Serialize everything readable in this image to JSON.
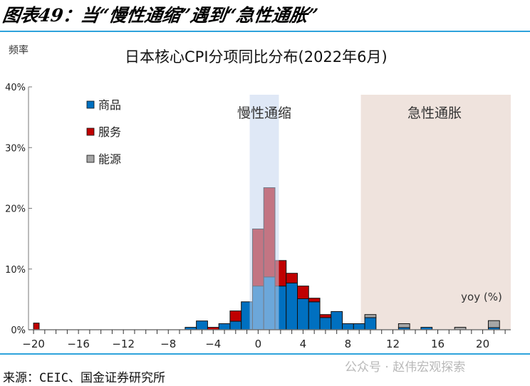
{
  "figure_title": "图表49：当“慢性通缩”遇到“急性通胀”",
  "source": "来源：CEIC、国金证券研究所",
  "watermark": "公众号 · 赵伟宏观探索",
  "colors": {
    "rule": "#2ea3dc",
    "goods": "#0070c0",
    "services": "#c00000",
    "energy": "#a6a6a6",
    "slow_region": "#c5d6ee",
    "acute_region": "#efe3dd"
  },
  "chart_data": {
    "type": "bar",
    "stacked": true,
    "title": "日本核心CPI分项同比分布(2022年6月)",
    "ylabel": "频率",
    "xlabel": "yoy (%)",
    "xlim": [
      -20.45,
      22.5
    ],
    "ylim": [
      0,
      40
    ],
    "xticks": [
      -20,
      -16,
      -12,
      -8,
      -4,
      0,
      4,
      8,
      12,
      16,
      20
    ],
    "xtick_labels": [
      "−20",
      "−16",
      "−12",
      "−8",
      "−4",
      "0",
      "4",
      "8",
      "12",
      "16",
      "20"
    ],
    "yticks": [
      0,
      10,
      20,
      30,
      40
    ],
    "ytick_labels": [
      "0%",
      "10%",
      "20%",
      "30%",
      "40%"
    ],
    "grid": false,
    "legend_position": "top-left",
    "x": [
      -20,
      -6,
      -5,
      -4,
      -3,
      -2,
      -1,
      0,
      1,
      2,
      3,
      4,
      5,
      6,
      7,
      8,
      9,
      10,
      13,
      15,
      18,
      21
    ],
    "series": [
      {
        "name": "商品",
        "color": "#0070c0",
        "values": [
          0,
          0.4,
          1.45,
          0,
          1.0,
          1.4,
          4.6,
          7.2,
          8.7,
          7.2,
          7.7,
          5.1,
          4.6,
          2.0,
          3.0,
          1.0,
          1.0,
          2.0,
          0.35,
          0.4,
          0,
          0.35
        ]
      },
      {
        "name": "服务",
        "color": "#c00000",
        "values": [
          1.1,
          0,
          0,
          0.4,
          0,
          1.7,
          0,
          9.4,
          14.7,
          4.2,
          1.6,
          2.1,
          0.6,
          0.5,
          0,
          0,
          0,
          0,
          0,
          0,
          0,
          0
        ]
      },
      {
        "name": "能源",
        "color": "#a6a6a6",
        "values": [
          0,
          0,
          0,
          0,
          0,
          0,
          0,
          0,
          0,
          0,
          0,
          0,
          0,
          0,
          0,
          0,
          0,
          0.5,
          0.65,
          0,
          0.4,
          1.15
        ]
      }
    ],
    "annotations": [
      {
        "text": "慢性通缩",
        "region": [
          -0.75,
          1.85
        ]
      },
      {
        "text": "急性通胀",
        "region": [
          9.15,
          22.5
        ]
      }
    ]
  }
}
